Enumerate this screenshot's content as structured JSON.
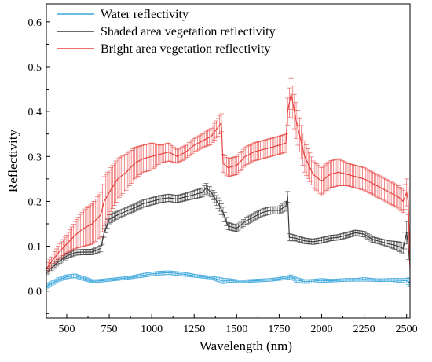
{
  "chart_data": {
    "type": "line",
    "title": "",
    "xlabel": "Wavelength (nm)",
    "ylabel": "Reflectivity",
    "xlim": [
      380,
      2520
    ],
    "ylim": [
      -0.06,
      0.64
    ],
    "xticks": [
      500,
      750,
      1000,
      1250,
      1500,
      1750,
      2000,
      2250,
      2500
    ],
    "yticks": [
      0.0,
      0.1,
      0.2,
      0.3,
      0.4,
      0.5,
      0.6
    ],
    "ytick_labels": [
      "0.0",
      "0.1",
      "0.2",
      "0.3",
      "0.4",
      "0.5",
      "0.6"
    ],
    "grid": false,
    "legend_position": "top-left",
    "error_bars": true,
    "series": [
      {
        "name": "Water reflectivity",
        "color": "#3fa8dc",
        "x": [
          380,
          450,
          500,
          550,
          600,
          650,
          700,
          750,
          800,
          850,
          900,
          950,
          1000,
          1050,
          1100,
          1150,
          1200,
          1250,
          1300,
          1350,
          1400,
          1420,
          1450,
          1500,
          1550,
          1600,
          1650,
          1700,
          1750,
          1800,
          1820,
          1850,
          1900,
          1950,
          2000,
          2050,
          2100,
          2150,
          2200,
          2250,
          2300,
          2350,
          2400,
          2450,
          2500,
          2515
        ],
        "values": [
          0.01,
          0.025,
          0.032,
          0.034,
          0.028,
          0.022,
          0.023,
          0.025,
          0.027,
          0.029,
          0.032,
          0.035,
          0.038,
          0.04,
          0.041,
          0.039,
          0.037,
          0.034,
          0.032,
          0.03,
          0.025,
          0.022,
          0.024,
          0.022,
          0.022,
          0.023,
          0.024,
          0.025,
          0.027,
          0.03,
          0.032,
          0.025,
          0.021,
          0.022,
          0.024,
          0.023,
          0.024,
          0.025,
          0.025,
          0.026,
          0.025,
          0.024,
          0.025,
          0.024,
          0.023,
          0.02
        ],
        "errors": [
          0.005,
          0.004,
          0.004,
          0.004,
          0.004,
          0.003,
          0.003,
          0.003,
          0.003,
          0.003,
          0.003,
          0.004,
          0.004,
          0.004,
          0.004,
          0.004,
          0.004,
          0.003,
          0.003,
          0.003,
          0.005,
          0.006,
          0.004,
          0.003,
          0.003,
          0.003,
          0.003,
          0.003,
          0.003,
          0.004,
          0.004,
          0.005,
          0.004,
          0.004,
          0.004,
          0.003,
          0.003,
          0.003,
          0.003,
          0.004,
          0.003,
          0.003,
          0.003,
          0.004,
          0.005,
          0.01
        ]
      },
      {
        "name": "Shaded area vegetation reflectivity",
        "color": "#3a3a3a",
        "x": [
          380,
          400,
          450,
          500,
          550,
          600,
          650,
          700,
          720,
          750,
          800,
          850,
          900,
          950,
          1000,
          1050,
          1100,
          1150,
          1200,
          1250,
          1300,
          1320,
          1350,
          1400,
          1420,
          1450,
          1500,
          1550,
          1600,
          1650,
          1700,
          1750,
          1790,
          1800,
          1810,
          1850,
          1900,
          1950,
          2000,
          2050,
          2100,
          2150,
          2200,
          2250,
          2300,
          2350,
          2400,
          2450,
          2480,
          2500,
          2510,
          2520
        ],
        "values": [
          0.04,
          0.048,
          0.065,
          0.078,
          0.086,
          0.087,
          0.087,
          0.095,
          0.13,
          0.16,
          0.17,
          0.178,
          0.186,
          0.195,
          0.2,
          0.205,
          0.208,
          0.205,
          0.21,
          0.215,
          0.22,
          0.23,
          0.22,
          0.19,
          0.175,
          0.145,
          0.14,
          0.155,
          0.165,
          0.175,
          0.18,
          0.18,
          0.19,
          0.21,
          0.12,
          0.118,
          0.112,
          0.11,
          0.113,
          0.118,
          0.12,
          0.125,
          0.13,
          0.127,
          0.115,
          0.11,
          0.105,
          0.1,
          0.095,
          0.13,
          0.1,
          0.06
        ],
        "errors": [
          0.006,
          0.006,
          0.006,
          0.006,
          0.006,
          0.006,
          0.006,
          0.007,
          0.01,
          0.01,
          0.008,
          0.008,
          0.008,
          0.008,
          0.008,
          0.008,
          0.008,
          0.008,
          0.008,
          0.009,
          0.01,
          0.01,
          0.01,
          0.012,
          0.012,
          0.008,
          0.007,
          0.008,
          0.008,
          0.008,
          0.008,
          0.008,
          0.01,
          0.012,
          0.008,
          0.006,
          0.006,
          0.006,
          0.006,
          0.006,
          0.006,
          0.006,
          0.006,
          0.006,
          0.006,
          0.006,
          0.007,
          0.01,
          0.012,
          0.025,
          0.03,
          0.04
        ]
      },
      {
        "name": "Bright area vegetation reflectivity",
        "color": "#e8413f",
        "x": [
          380,
          400,
          450,
          500,
          550,
          600,
          650,
          700,
          720,
          750,
          800,
          850,
          900,
          950,
          1000,
          1050,
          1100,
          1150,
          1200,
          1250,
          1300,
          1350,
          1400,
          1410,
          1420,
          1450,
          1500,
          1550,
          1600,
          1650,
          1700,
          1750,
          1790,
          1800,
          1820,
          1850,
          1900,
          1950,
          2000,
          2050,
          2100,
          2150,
          2200,
          2250,
          2300,
          2350,
          2400,
          2450,
          2480,
          2500,
          2510,
          2520
        ],
        "values": [
          0.05,
          0.06,
          0.085,
          0.105,
          0.125,
          0.14,
          0.15,
          0.17,
          0.2,
          0.22,
          0.25,
          0.265,
          0.285,
          0.295,
          0.3,
          0.305,
          0.31,
          0.3,
          0.31,
          0.325,
          0.335,
          0.345,
          0.37,
          0.375,
          0.285,
          0.275,
          0.28,
          0.3,
          0.31,
          0.315,
          0.32,
          0.325,
          0.33,
          0.4,
          0.44,
          0.38,
          0.3,
          0.26,
          0.245,
          0.26,
          0.265,
          0.26,
          0.255,
          0.25,
          0.24,
          0.23,
          0.22,
          0.21,
          0.2,
          0.22,
          0.2,
          0.05
        ],
        "errors": [
          0.008,
          0.01,
          0.015,
          0.02,
          0.03,
          0.04,
          0.045,
          0.05,
          0.055,
          0.05,
          0.045,
          0.04,
          0.035,
          0.03,
          0.03,
          0.02,
          0.02,
          0.015,
          0.015,
          0.015,
          0.015,
          0.018,
          0.02,
          0.02,
          0.02,
          0.02,
          0.02,
          0.02,
          0.02,
          0.02,
          0.02,
          0.02,
          0.02,
          0.03,
          0.035,
          0.04,
          0.035,
          0.03,
          0.03,
          0.03,
          0.03,
          0.025,
          0.025,
          0.025,
          0.025,
          0.025,
          0.025,
          0.025,
          0.025,
          0.03,
          0.03,
          0.04
        ]
      }
    ]
  }
}
